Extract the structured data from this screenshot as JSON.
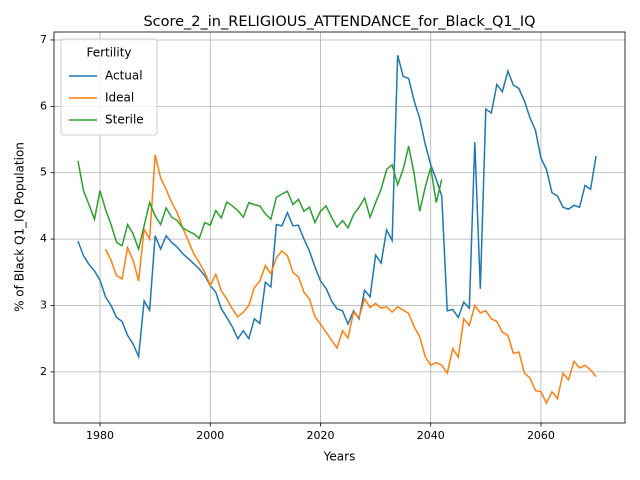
{
  "chart_data": {
    "type": "line",
    "title": "Score_2_in_RELIGIOUS_ATTENDANCE_for_Black_Q1_IQ",
    "xlabel": "Years",
    "ylabel": "% of Black Q1_IQ Population",
    "legend_title": "Fertility",
    "legend": "upper left",
    "grid": true,
    "xlim": [
      1971.65,
      2075.25
    ],
    "ylim": [
      1.23,
      7.12
    ],
    "xticks": [
      1980,
      2000,
      2020,
      2040,
      2060
    ],
    "yticks": [
      2,
      3,
      4,
      5,
      6,
      7
    ],
    "x": [
      1976,
      1977,
      1978,
      1979,
      1980,
      1981,
      1982,
      1983,
      1984,
      1985,
      1986,
      1987,
      1988,
      1989,
      1990,
      1991,
      1992,
      1993,
      1994,
      1995,
      1996,
      1997,
      1998,
      1999,
      2000,
      2001,
      2002,
      2003,
      2004,
      2005,
      2006,
      2007,
      2008,
      2009,
      2010,
      2011,
      2012,
      2013,
      2014,
      2015,
      2016,
      2017,
      2018,
      2019,
      2020,
      2021,
      2022,
      2023,
      2024,
      2025,
      2026,
      2027,
      2028,
      2029,
      2030,
      2031,
      2032,
      2033,
      2034,
      2035,
      2036,
      2037,
      2038,
      2039,
      2040,
      2041,
      2042,
      2043,
      2044,
      2045,
      2046,
      2047,
      2048,
      2049,
      2050,
      2051,
      2052,
      2053,
      2054,
      2055,
      2056,
      2057,
      2058,
      2059,
      2060,
      2061,
      2062,
      2063,
      2064,
      2065,
      2066,
      2067,
      2068,
      2069,
      2070
    ],
    "series": [
      {
        "name": "Actual",
        "color": "#1f77b4",
        "values": [
          3.97,
          3.75,
          3.62,
          3.52,
          3.38,
          3.13,
          3.0,
          2.82,
          2.76,
          2.55,
          2.42,
          2.23,
          3.07,
          2.93,
          4.05,
          3.85,
          4.05,
          3.95,
          3.88,
          3.78,
          3.71,
          3.63,
          3.55,
          3.45,
          3.3,
          3.2,
          2.95,
          2.82,
          2.68,
          2.5,
          2.62,
          2.5,
          2.8,
          2.73,
          3.35,
          3.28,
          4.22,
          4.2,
          4.4,
          4.2,
          4.21,
          4.0,
          3.82,
          3.58,
          3.37,
          3.26,
          3.07,
          2.95,
          2.92,
          2.72,
          2.92,
          2.8,
          3.23,
          3.13,
          3.76,
          3.64,
          4.14,
          3.98,
          6.77,
          6.45,
          6.42,
          6.08,
          5.82,
          5.43,
          5.12,
          4.9,
          4.65,
          2.92,
          2.94,
          2.82,
          3.05,
          2.96,
          5.46,
          3.25,
          5.96,
          5.9,
          6.33,
          6.22,
          6.53,
          6.32,
          6.27,
          6.08,
          5.83,
          5.64,
          5.22,
          5.05,
          4.7,
          4.65,
          4.48,
          4.45,
          4.51,
          4.48,
          4.81,
          4.75,
          5.25
        ]
      },
      {
        "name": "Ideal",
        "color": "#ff7f0e",
        "values": [
          null,
          null,
          null,
          null,
          null,
          3.85,
          3.68,
          3.45,
          3.4,
          3.87,
          3.68,
          3.37,
          4.15,
          4.0,
          5.27,
          4.92,
          4.75,
          4.55,
          4.4,
          4.17,
          3.98,
          3.78,
          3.65,
          3.5,
          3.3,
          3.47,
          3.22,
          3.1,
          2.95,
          2.83,
          2.9,
          3.0,
          3.27,
          3.37,
          3.6,
          3.48,
          3.72,
          3.82,
          3.75,
          3.5,
          3.43,
          3.2,
          3.1,
          2.83,
          2.72,
          2.6,
          2.48,
          2.36,
          2.62,
          2.51,
          2.9,
          2.82,
          3.1,
          2.97,
          3.03,
          2.96,
          2.98,
          2.9,
          2.98,
          2.93,
          2.88,
          2.68,
          2.53,
          2.23,
          2.1,
          2.14,
          2.1,
          1.98,
          2.35,
          2.22,
          2.8,
          2.7,
          3.0,
          2.89,
          2.92,
          2.8,
          2.76,
          2.6,
          2.55,
          2.28,
          2.3,
          1.98,
          1.91,
          1.72,
          1.7,
          1.53,
          1.7,
          1.6,
          1.98,
          1.88,
          2.16,
          2.06,
          2.1,
          2.03,
          1.93
        ]
      },
      {
        "name": "Sterile",
        "color": "#2ca02c",
        "values": [
          5.18,
          4.73,
          4.52,
          4.3,
          4.73,
          4.45,
          4.22,
          3.95,
          3.9,
          4.22,
          4.08,
          3.85,
          4.2,
          4.55,
          4.35,
          4.22,
          4.47,
          4.33,
          4.28,
          4.17,
          4.12,
          4.08,
          4.01,
          4.25,
          4.21,
          4.43,
          4.32,
          4.56,
          4.5,
          4.43,
          4.33,
          4.55,
          4.52,
          4.5,
          4.38,
          4.3,
          4.63,
          4.68,
          4.72,
          4.52,
          4.6,
          4.42,
          4.48,
          4.25,
          4.42,
          4.5,
          4.33,
          4.18,
          4.28,
          4.17,
          4.37,
          4.48,
          4.62,
          4.33,
          4.55,
          4.75,
          5.05,
          5.12,
          4.82,
          5.05,
          5.4,
          4.98,
          4.42,
          4.78,
          5.08,
          4.55,
          4.9,
          null,
          null,
          null,
          null,
          null,
          null,
          null,
          null,
          null,
          null,
          null,
          null,
          null,
          null,
          null,
          null,
          null,
          null,
          null,
          null,
          null,
          null,
          null,
          null,
          null,
          null,
          null,
          null
        ]
      }
    ]
  }
}
